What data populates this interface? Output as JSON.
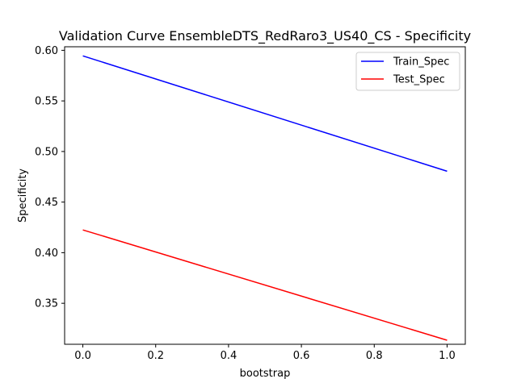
{
  "chart_data": {
    "type": "line",
    "title": "Validation Curve EnsembleDTS_RedRaro3_US40_CS - Specificity",
    "xlabel": "bootstrap",
    "ylabel": "Specificity",
    "x": [
      0.0,
      1.0
    ],
    "xlim": [
      -0.05,
      1.05
    ],
    "ylim": [
      0.3095,
      0.6035
    ],
    "xticks": [
      "0.0",
      "0.2",
      "0.4",
      "0.6",
      "0.8",
      "1.0"
    ],
    "yticks": [
      "0.35",
      "0.40",
      "0.45",
      "0.50",
      "0.55",
      "0.60"
    ],
    "grid": false,
    "legend_position": "top-right",
    "series": [
      {
        "name": "Train_Spec",
        "color": "#0000ff",
        "values": [
          0.5945,
          0.4805
        ]
      },
      {
        "name": "Test_Spec",
        "color": "#ff0000",
        "values": [
          0.4225,
          0.3135
        ]
      }
    ]
  }
}
